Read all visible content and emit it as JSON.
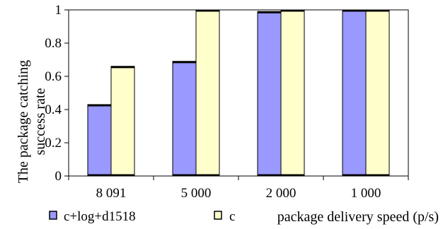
{
  "chart_data": {
    "type": "bar",
    "categories": [
      "8 091",
      "5 000",
      "2 000",
      "1 000"
    ],
    "series": [
      {
        "name": "c+log+d1518",
        "values": [
          0.43,
          0.69,
          0.99,
          1.0
        ],
        "color": "#9999ff"
      },
      {
        "name": "c",
        "values": [
          0.66,
          1.0,
          1.0,
          1.0
        ],
        "color": "#ffffcc"
      }
    ],
    "ylabel_line1": "The package catching",
    "ylabel_line2": "success rate",
    "xlabel": "package delivery speed (p/s)",
    "ylim": [
      0,
      1
    ],
    "yticks": [
      0,
      0.2,
      0.4,
      0.6,
      0.8,
      1
    ],
    "ytick_labels": [
      "0",
      "0.2",
      "0.4",
      "0.6",
      "0.8",
      "1"
    ],
    "grid": false,
    "legend_position": "bottom-left"
  }
}
